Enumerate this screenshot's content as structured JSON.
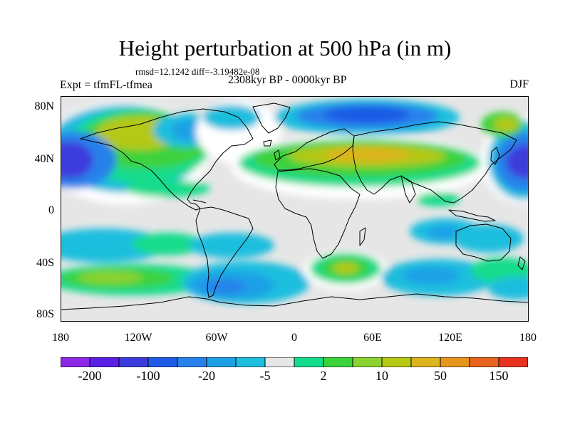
{
  "title": "Height perturbation at 500 hPa (in m)",
  "stats": {
    "rmsd_label": "rmsd=",
    "rmsd": "12.1242",
    "diff_label": "diff=",
    "diff": "-3.19482e-08"
  },
  "experiment": "Expt = tfmFL-tfmea",
  "period": "2308kyr BP - 0000kyr BP",
  "season": "DJF",
  "lat_labels": [
    "80N",
    "40N",
    "0",
    "40S",
    "80S"
  ],
  "lon_labels": [
    "180",
    "120W",
    "60W",
    "0",
    "60E",
    "120E",
    "180"
  ],
  "colorbar": {
    "labels": [
      "-200",
      "-100",
      "-20",
      "-5",
      "2",
      "10",
      "50",
      "150"
    ],
    "colors": [
      "#8c28e6",
      "#5a1ee6",
      "#3c3cdc",
      "#1e5ae6",
      "#2882ea",
      "#1ea0e6",
      "#1ebede",
      "#e6e6e6",
      "#14dc8c",
      "#3cd23c",
      "#8cd232",
      "#b4c814",
      "#dcb41e",
      "#e6961e",
      "#e6641e",
      "#e6321e"
    ]
  },
  "map_colors": {
    "neutral": "#e6e6e6",
    "white": "#ffffff",
    "cyan": "#1ebede",
    "lblue": "#1ea0e6",
    "blue": "#2882ea",
    "dblue": "#1e5ae6",
    "navy": "#3c3cdc",
    "teal": "#14dc8c",
    "green": "#3cd23c",
    "lgreen": "#8cd232",
    "yellow": "#b4c814",
    "gold": "#dcb41e"
  }
}
